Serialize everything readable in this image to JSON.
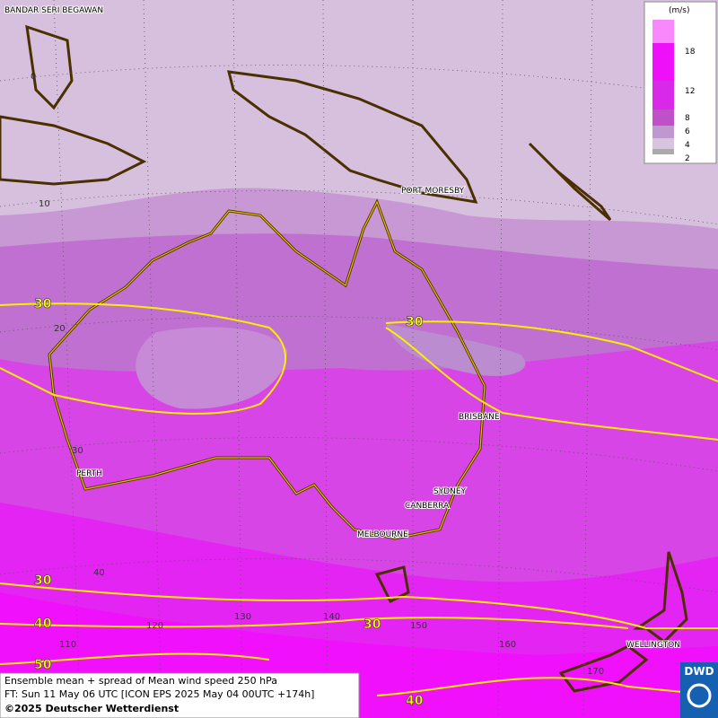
{
  "map": {
    "cities": [
      "BANDAR SERI BEGAWAN",
      "PORT MORESBY",
      "BRISBANE",
      "SYDNEY",
      "CANBERRA",
      "MELBOURNE",
      "PERTH",
      "WELLINGTON"
    ],
    "graticule": [
      "0",
      "10",
      "20",
      "30",
      "40",
      "110",
      "120",
      "130",
      "140",
      "150",
      "160",
      "170"
    ],
    "contours": [
      "30",
      "30",
      "30",
      "30",
      "40",
      "50",
      "40"
    ],
    "legend": {
      "unit": "(m/s)",
      "ticks": [
        "18",
        "12",
        "8",
        "6",
        "4",
        "2"
      ]
    },
    "footer": [
      "Ensemble mean + spread of Mean wind speed 250 hPa",
      "FT: Sun 11 May 06 UTC [ICON EPS 2025 May 04 00UTC +174h]",
      "©2025 Deutscher Wetterdienst"
    ],
    "logo": "DWD"
  }
}
